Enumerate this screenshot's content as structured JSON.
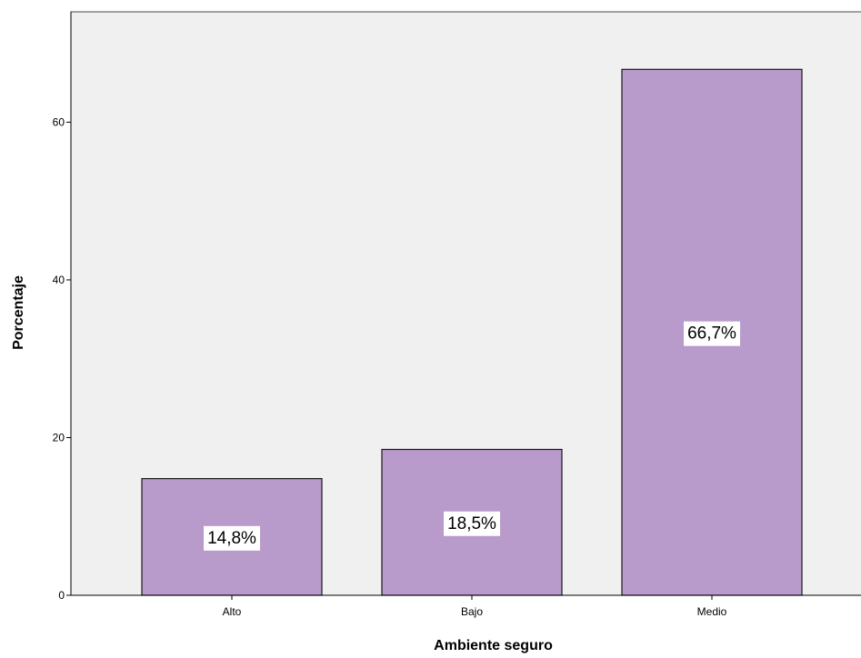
{
  "chart_data": {
    "type": "bar",
    "title": "",
    "xlabel": "Ambiente seguro",
    "ylabel": "Porcentaje",
    "categories": [
      "Alto",
      "Bajo",
      "Medio"
    ],
    "values": [
      14.8,
      18.5,
      66.7
    ],
    "data_labels": [
      "14,8%",
      "18,5%",
      "66,7%"
    ],
    "ylim": [
      0,
      74
    ],
    "yticks": [
      0,
      20,
      40,
      60
    ],
    "ytick_labels": [
      "0",
      "20",
      "40",
      "60"
    ],
    "grid": false,
    "legend": "none",
    "colors": {
      "bar_fill": "#b89acb",
      "bar_stroke": "#1a1a1a",
      "plot_background": "#f0f0f0",
      "label_box": "#ffffff"
    }
  }
}
